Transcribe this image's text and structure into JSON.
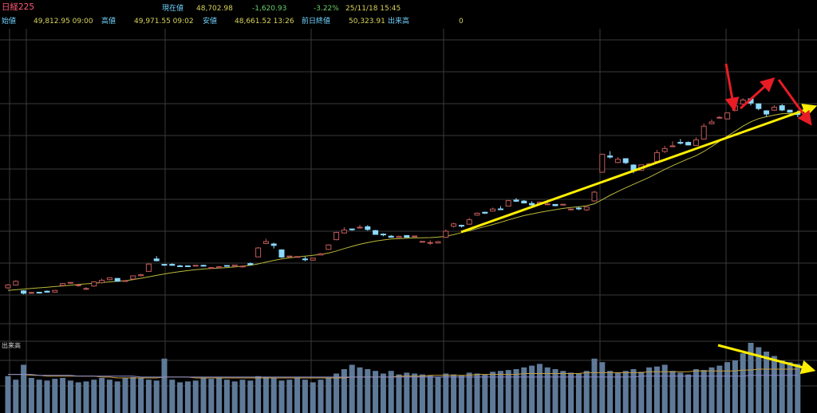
{
  "header": {
    "name": "日経225",
    "current_label": "現在値",
    "current_value": "48,702.98",
    "change": "-1,620.93",
    "change_pct": "-3.22%",
    "datetime": "25/11/18  15:45",
    "open_label": "始値",
    "open_value": "49,812.95 09:00",
    "high_label": "高値",
    "high_value": "49,971.55 09:02",
    "low_label": "安値",
    "low_value": "48,661.52 13:26",
    "prev_close_label": "前日終値",
    "prev_close_value": "50,323.91",
    "volume_label": "出来高",
    "volume_value": "0"
  },
  "volume_panel_label": "出来高",
  "colors": {
    "background": "#000000",
    "grid": "#3a3a3a",
    "up_candle": "#c25a5a",
    "down_candle": "#8cd8ff",
    "moving_average": "#b8b83c",
    "volume_bar": "#5f7a99",
    "volume_ma_1": "#c8a040",
    "volume_ma_2": "#8888cc",
    "trend_arrow": "#ffee00",
    "wave_arrow": "#e81c24"
  },
  "chart_data": {
    "type": "candlestick",
    "title": "日経225",
    "y_range": [
      0,
      100
    ],
    "candles": [
      [
        78.5,
        80.3,
        80.8,
        77.8
      ],
      [
        80.2,
        82.6,
        83.2,
        79.9
      ],
      [
        76.6,
        75.1,
        77.0,
        74.4
      ],
      [
        75.3,
        75.6,
        76.0,
        74.8
      ],
      [
        75.7,
        75.4,
        76.0,
        75.1
      ],
      [
        76.4,
        75.8,
        76.8,
        75.4
      ],
      [
        75.8,
        76.9,
        77.1,
        75.6
      ],
      [
        80.0,
        81.2,
        81.6,
        79.3
      ],
      [
        81.6,
        81.9,
        82.0,
        81.1
      ],
      [
        80.2,
        80.3,
        81.0,
        79.2
      ],
      [
        78.0,
        78.1,
        78.9,
        77.2
      ],
      [
        79.6,
        82.2,
        82.6,
        79.2
      ],
      [
        81.7,
        83.2,
        84.3,
        81.2
      ],
      [
        83.6,
        84.8,
        84.9,
        83.1
      ],
      [
        84.4,
        82.6,
        84.4,
        82.4
      ],
      [
        82.6,
        83.0,
        83.4,
        82.3
      ],
      [
        84.0,
        86.0,
        86.2,
        83.5
      ],
      [
        86.1,
        86.7,
        87.2,
        85.7
      ],
      [
        88.8,
        93.4,
        93.9,
        88.6
      ],
      [
        96.6,
        95.5,
        98.4,
        95.1
      ],
      [
        93.2,
        93.0,
        93.5,
        92.3
      ],
      [
        93.2,
        92.6,
        93.9,
        92.5
      ],
      [
        92.3,
        92.1,
        92.9,
        91.8
      ],
      [
        92.3,
        92.0,
        92.5,
        91.9
      ],
      [
        92.2,
        92.6,
        92.8,
        91.9
      ],
      [
        92.6,
        92.2,
        93.0,
        92.1
      ],
      [
        91.2,
        91.2,
        91.5,
        91.0
      ],
      [
        91.1,
        91.7,
        92.2,
        90.9
      ],
      [
        92.5,
        92.3,
        92.7,
        92.0
      ],
      [
        92.1,
        92.8,
        93.0,
        91.4
      ],
      [
        91.6,
        92.1,
        92.5,
        91.4
      ],
      [
        93.7,
        93.0,
        94.4,
        92.9
      ],
      [
        97.9,
        103.5,
        104.1,
        97.8
      ],
      [
        106.3,
        107.5,
        109.3,
        105.9
      ],
      [
        106.0,
        105.1,
        106.8,
        103.2
      ],
      [
        102.3,
        97.8,
        102.7,
        97.3
      ],
      [
        98.0,
        98.4,
        98.6,
        97.9
      ],
      [
        98.0,
        98.1,
        98.3,
        97.4
      ],
      [
        96.6,
        96.5,
        98.1,
        95.1
      ],
      [
        95.9,
        97.1,
        97.3,
        95.5
      ],
      [
        99.1,
        99.8,
        100.4,
        98.8
      ],
      [
        102.6,
        105.4,
        105.8,
        102.3
      ],
      [
        108.7,
        113.2,
        113.6,
        108.3
      ],
      [
        112.9,
        114.7,
        116.5,
        112.6
      ],
      [
        115.4,
        115.1,
        115.7,
        114.3
      ],
      [
        116.4,
        116.5,
        118.0,
        116.0
      ],
      [
        116.8,
        115.1,
        117.8,
        114.3
      ],
      [
        114.4,
        112.0,
        114.8,
        111.9
      ],
      [
        112.2,
        111.7,
        112.7,
        110.8
      ],
      [
        110.9,
        110.2,
        111.6,
        110.4
      ],
      [
        110.1,
        110.8,
        111.2,
        109.7
      ],
      [
        111.3,
        110.2,
        111.2,
        110.1
      ],
      [
        110.9,
        111.0,
        111.2,
        110.7
      ],
      [
        107.1,
        107.6,
        107.7,
        107.1
      ],
      [
        106.5,
        106.9,
        108.3,
        105.4
      ],
      [
        106.6,
        107.4,
        107.9,
        106.3
      ],
      [
        110.2,
        114.0,
        115.1,
        109.9
      ],
      [
        117.1,
        118.6,
        119.3,
        116.3
      ],
      [
        117.7,
        117.2,
        118.1,
        116.3
      ],
      [
        118.4,
        121.2,
        122.4,
        118.2
      ],
      [
        124.1,
        125.3,
        125.8,
        123.7
      ],
      [
        125.9,
        125.3,
        126.2,
        124.8
      ],
      [
        126.6,
        127.9,
        128.8,
        126.4
      ],
      [
        128.0,
        127.9,
        129.8,
        127.8
      ],
      [
        129.7,
        133.2,
        133.6,
        129.6
      ],
      [
        133.5,
        132.8,
        134.8,
        132.4
      ],
      [
        132.9,
        131.7,
        133.5,
        131.6
      ],
      [
        131.4,
        130.5,
        132.8,
        129.7
      ],
      [
        131.5,
        132.2,
        132.6,
        130.8
      ],
      [
        131.0,
        131.1,
        131.9,
        130.7
      ],
      [
        130.8,
        130.0,
        131.0,
        129.8
      ],
      [
        130.5,
        130.9,
        131.1,
        130.3
      ],
      [
        127.8,
        127.9,
        128.1,
        127.3
      ],
      [
        128.5,
        128.1,
        129.3,
        127.2
      ],
      [
        127.4,
        129.2,
        129.5,
        126.7
      ],
      [
        133.0,
        138.5,
        139.4,
        132.5
      ],
      [
        151.0,
        162.3,
        162.5,
        150.7
      ],
      [
        161.2,
        160.5,
        164.2,
        159.6
      ],
      [
        157.1,
        159.1,
        160.5,
        156.6
      ],
      [
        159.5,
        157.0,
        159.8,
        156.1
      ],
      [
        155.5,
        152.4,
        156.0,
        150.3
      ],
      [
        152.2,
        155.6,
        155.8,
        151.8
      ],
      [
        155.8,
        156.2,
        156.8,
        155.4
      ],
      [
        157.8,
        163.3,
        165.0,
        157.0
      ],
      [
        164.0,
        165.8,
        167.6,
        163.1
      ],
      [
        167.2,
        167.5,
        170.3,
        166.9
      ],
      [
        169.7,
        169.6,
        171.8,
        168.4
      ],
      [
        169.7,
        168.1,
        170.3,
        167.8
      ],
      [
        167.8,
        171.3,
        172.9,
        167.6
      ],
      [
        171.8,
        179.9,
        181.6,
        171.6
      ],
      [
        181.4,
        182.5,
        184.1,
        181.1
      ],
      [
        185.3,
        185.4,
        186.2,
        184.9
      ],
      [
        184.4,
        188.2,
        188.2,
        184.1
      ],
      [
        189.8,
        192.6,
        193.1,
        189.4
      ],
      [
        193.8,
        196.3,
        197.4,
        193.4
      ],
      [
        197.0,
        194.4,
        197.5,
        192.9
      ],
      [
        193.9,
        190.9,
        194.2,
        189.9
      ],
      [
        189.5,
        187.5,
        189.9,
        185.7
      ],
      [
        189.9,
        191.8,
        193.0,
        189.4
      ],
      [
        192.7,
        190.0,
        193.7,
        189.3
      ],
      [
        189.9,
        188.7,
        190.2,
        188.5
      ],
      [
        188.1,
        187.2,
        189.7,
        185.5
      ]
    ],
    "price_ma": [
      76.9,
      77.3,
      77.7,
      78.1,
      78.5,
      78.9,
      79.3,
      79.7,
      80.1,
      80.6,
      81.0,
      81.4,
      81.8,
      82.2,
      82.6,
      83.0,
      83.6,
      84.5,
      85.4,
      86.3,
      87.2,
      88.0,
      88.7,
      89.3,
      89.9,
      90.3,
      90.6,
      90.9,
      91.2,
      91.6,
      92.1,
      92.6,
      93.5,
      94.6,
      95.7,
      96.6,
      97.3,
      97.9,
      98.4,
      98.9,
      99.5,
      100.3,
      101.6,
      103.1,
      104.5,
      105.8,
      106.9,
      107.8,
      108.5,
      109.1,
      109.4,
      109.6,
      109.8,
      109.9,
      110.0,
      110.3,
      110.8,
      111.9,
      113.1,
      114.3,
      115.6,
      116.9,
      118.2,
      119.6,
      121.1,
      122.5,
      123.8,
      124.8,
      125.8,
      126.7,
      127.5,
      128.3,
      128.9,
      129.4,
      130.0,
      131.2,
      133.8,
      136.5,
      138.9,
      141.2,
      143.4,
      145.6,
      147.8,
      150.3,
      152.8,
      155.1,
      157.3,
      159.4,
      161.4,
      164.0,
      167.1,
      170.4,
      173.6,
      176.7,
      179.9,
      182.6,
      184.6,
      185.8,
      186.8,
      187.7,
      187.9,
      187.7
    ],
    "volume": [
      42,
      38,
      55,
      40,
      38,
      37,
      39,
      40,
      37,
      35,
      36,
      38,
      40,
      38,
      36,
      40,
      41,
      40,
      38,
      37,
      62,
      38,
      35,
      36,
      37,
      40,
      39,
      40,
      38,
      36,
      38,
      37,
      42,
      41,
      40,
      37,
      38,
      40,
      38,
      35,
      38,
      40,
      45,
      50,
      55,
      52,
      50,
      48,
      45,
      48,
      44,
      46,
      45,
      44,
      43,
      41,
      45,
      44,
      43,
      46,
      45,
      44,
      47,
      48,
      49,
      50,
      52,
      54,
      56,
      52,
      50,
      48,
      46,
      45,
      48,
      62,
      58,
      48,
      46,
      48,
      50,
      47,
      52,
      53,
      55,
      48,
      46,
      44,
      50,
      49,
      52,
      54,
      58,
      60,
      68,
      80,
      75,
      70,
      65,
      60,
      58,
      56
    ],
    "volume_ma_1": [
      44,
      44,
      44,
      43,
      43,
      42,
      42,
      42,
      42,
      42,
      42,
      42,
      41,
      41,
      40,
      40,
      40,
      40,
      40,
      40,
      41,
      41,
      41,
      41,
      40,
      40,
      40,
      40,
      40,
      40,
      40,
      40,
      40,
      40,
      40,
      40,
      40,
      40,
      40,
      40,
      40,
      40,
      40,
      40,
      41,
      41,
      41,
      41,
      41,
      41,
      42,
      42,
      42,
      42,
      43,
      43,
      43,
      43,
      43,
      43,
      44,
      44,
      44,
      44,
      44,
      44,
      45,
      45,
      45,
      45,
      45,
      45,
      45,
      45,
      46,
      46,
      46,
      46,
      46,
      46,
      46,
      46,
      47,
      47,
      47,
      47,
      47,
      47,
      48,
      48,
      48,
      48,
      48,
      48,
      49,
      49,
      50,
      50,
      50,
      50,
      50,
      50
    ],
    "volume_ma_2": [
      44,
      44,
      44,
      44,
      43,
      43,
      43,
      43,
      43,
      42,
      42,
      42,
      42,
      42,
      42,
      42,
      42,
      41,
      41,
      41,
      41,
      41,
      41,
      41,
      41,
      41,
      41,
      41,
      41,
      41,
      41,
      41,
      41,
      41,
      41,
      41,
      41,
      41,
      41,
      41,
      41,
      41,
      41,
      41,
      41,
      41,
      41,
      41,
      41,
      41,
      41,
      41,
      41,
      41,
      41,
      41,
      41,
      41,
      41,
      41,
      41,
      41,
      41,
      41,
      41,
      41,
      41,
      41,
      41,
      41,
      41,
      41,
      41,
      41,
      41,
      41,
      41,
      41,
      41,
      41,
      41,
      42,
      42,
      42,
      42,
      42,
      42,
      42,
      42,
      42,
      42,
      42,
      42,
      42,
      42,
      43,
      43,
      43,
      43,
      43,
      43,
      43
    ]
  }
}
